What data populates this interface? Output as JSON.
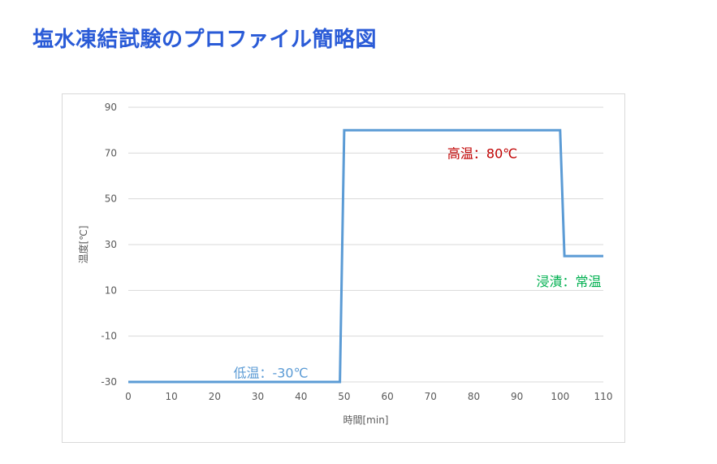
{
  "page": {
    "title": "塩水凍結試験のプロファイル簡略図",
    "title_color": "#2a5bd7"
  },
  "chart_data": {
    "type": "line",
    "xlabel": "時間[min]",
    "ylabel": "温度[℃]",
    "xlim": [
      0,
      110
    ],
    "ylim": [
      -30,
      90
    ],
    "x_ticks": [
      0,
      10,
      20,
      30,
      40,
      50,
      60,
      70,
      80,
      90,
      100,
      110
    ],
    "y_ticks": [
      -30,
      -10,
      10,
      30,
      50,
      70,
      90
    ],
    "grid": "horizontal",
    "series": [
      {
        "color": "#5b9bd5",
        "x": [
          0,
          49,
          50,
          100,
          101,
          110
        ],
        "y": [
          -30,
          -30,
          80,
          80,
          25,
          25
        ]
      }
    ],
    "annotations": [
      {
        "text": "低温：-30℃",
        "x": 33,
        "y": -26,
        "color": "#5b9bd5"
      },
      {
        "text": "高温：80℃",
        "x": 82,
        "y": 70,
        "color": "#c00000"
      },
      {
        "text": "浸漬：常温",
        "x": 102,
        "y": 14,
        "color": "#00b050"
      }
    ]
  }
}
